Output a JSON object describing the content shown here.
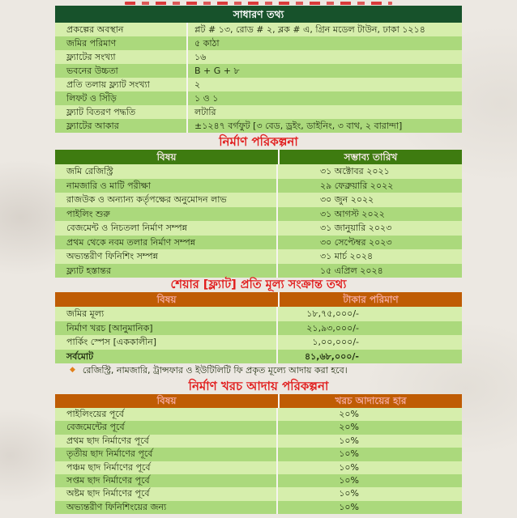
{
  "colors": {
    "page_background": "#ece8e2",
    "header_dark_green": "#17522b",
    "header_olive_green": "#3e7b10",
    "header_orange": "#bf5c04",
    "row_light_green": "#d6eeac",
    "row_dark_green": "#abd97c",
    "section_title_red": "#e11d1d",
    "body_text": "#233012",
    "bullet_orange": "#e2801a"
  },
  "general": {
    "title": "সাধারণ তথ্য",
    "rows": [
      {
        "label": "প্রকল্পের অবস্থান",
        "value": "প্লট # ১৩, রোড # ২, ব্লক # এ, গ্রিন মডেল টাউন, ঢাকা ১২১৪"
      },
      {
        "label": "জমির পরিমাণ",
        "value": "৫ কাঠা"
      },
      {
        "label": "ফ্ল্যাটের সংখ্যা",
        "value": "১৬"
      },
      {
        "label": "ভবনের উচ্চতা",
        "value": "B + G + ৮"
      },
      {
        "label": "প্রতি তলায় ফ্ল্যাট সংখ্যা",
        "value": "২"
      },
      {
        "label": "লিফট ও সিঁড়ি",
        "value": "১ ও ১"
      },
      {
        "label": "ফ্ল্যাট বিতরণ পদ্ধতি",
        "value": "লটারি"
      },
      {
        "label": "ফ্ল্যাটের আকার",
        "value": "±১২৪৭ বর্গফুট [৩ বেড, ড্রইং, ডাইনিং, ৩ বাথ, ২ বারান্দা]"
      }
    ]
  },
  "schedule": {
    "title": "নির্মাণ পরিকল্পনা",
    "columns": {
      "subject": "বিষয়",
      "date": "সম্ভাব্য তারিখ"
    },
    "rows": [
      {
        "label": "জমি রেজিস্ট্রি",
        "value": "৩১ অক্টোবর ২০২১"
      },
      {
        "label": "নামজারি ও মাটি পরীক্ষা",
        "value": "২৯ ফেব্রুয়ারি ২০২২"
      },
      {
        "label": "রাজউক ও অন্যান্য কর্তৃপক্ষের অনুমোদন লাভ",
        "value": "৩০ জুন ২০২২"
      },
      {
        "label": "পাইলিং শুরু",
        "value": "৩১ আগস্ট ২০২২"
      },
      {
        "label": "বেজমেন্ট ও নিচতলা নির্মাণ সম্পন্ন",
        "value": "৩১ জানুয়ারি ২০২৩"
      },
      {
        "label": "প্রথম থেকে নবম তলার নির্মাণ সম্পন্ন",
        "value": "৩০ সেপ্টেম্বর ২০২৩"
      },
      {
        "label": "অভ্যন্তরীণ ফিনিশিং সম্পন্ন",
        "value": "৩১ মার্চ ২০২৪"
      },
      {
        "label": "ফ্ল্যাট হস্তান্তর",
        "value": "১৫ এপ্রিল ২০২৪"
      }
    ]
  },
  "pricing": {
    "title": "শেয়ার [ফ্ল্যাট] প্রতি মূল্য সংক্রান্ত তথ্য",
    "columns": {
      "subject": "বিষয়",
      "amount": "টাকার পরিমাণ"
    },
    "rows": [
      {
        "label": "জমির মূল্য",
        "value": "১৮,৭৫,০০০/-"
      },
      {
        "label": "নির্মাণ খরচ [আনুমানিক]",
        "value": "২১,৯৩,০০০/-"
      },
      {
        "label": "পার্কিং স্পেস [এককালীন]",
        "value": "১,০০,০০০/-"
      },
      {
        "label": "সর্বমোট",
        "value": "৪১,৬৮,০০০/-"
      }
    ],
    "note": {
      "bullet_icon": "◆",
      "text": "রেজিস্ট্রি, নামজারি, ট্রান্সফার ও ইউটিলিটি ফি প্রকৃত মূল্যে আদায় করা হবে।"
    }
  },
  "payment": {
    "title": "নির্মাণ খরচ আদায় পরিকল্পনা",
    "columns": {
      "subject": "বিষয়",
      "rate": "খরচ আদায়ের হার"
    },
    "rows": [
      {
        "label": "পাইলিংয়ের পূর্বে",
        "value": "২০%"
      },
      {
        "label": "বেজমেন্টের পূর্বে",
        "value": "২০%"
      },
      {
        "label": "প্রথম ছাদ নির্মাণের পূর্বে",
        "value": "১০%"
      },
      {
        "label": "তৃতীয় ছাদ নির্মাণের পূর্বে",
        "value": "১০%"
      },
      {
        "label": "পঞ্চম ছাদ নির্মাণের পূর্বে",
        "value": "১০%"
      },
      {
        "label": "সপ্তম ছাদ নির্মাণের পূর্বে",
        "value": "১০%"
      },
      {
        "label": "অষ্টম ছাদ নির্মাণের পূর্বে",
        "value": "১০%"
      },
      {
        "label": "অভ্যন্তরীণ ফিনিশিংয়ের জন্য",
        "value": "১০%"
      }
    ]
  }
}
